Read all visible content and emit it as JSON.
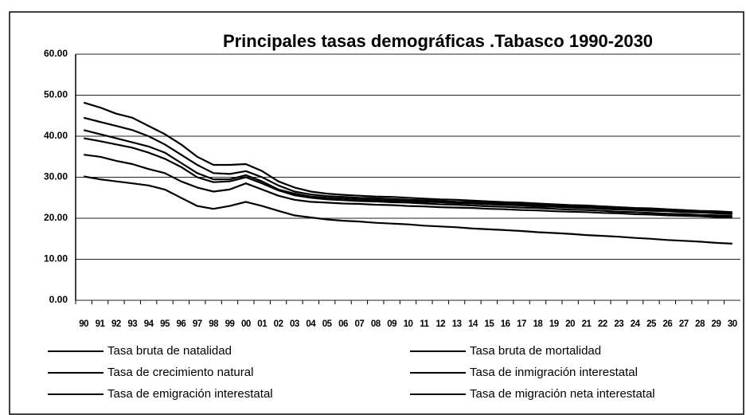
{
  "chart_data": {
    "type": "line",
    "title": "Principales tasas demográficas .Tabasco 1990-2030",
    "categories": [
      "90",
      "91",
      "92",
      "93",
      "94",
      "95",
      "96",
      "97",
      "98",
      "99",
      "00",
      "01",
      "02",
      "03",
      "04",
      "05",
      "06",
      "07",
      "08",
      "09",
      "10",
      "11",
      "12",
      "13",
      "14",
      "15",
      "16",
      "17",
      "18",
      "19",
      "20",
      "21",
      "22",
      "23",
      "24",
      "25",
      "26",
      "27",
      "28",
      "29",
      "30"
    ],
    "series": [
      {
        "name": "Tasa bruta de natalidad",
        "color": "#000000",
        "values": [
          48.2,
          47,
          45.5,
          44.5,
          42.5,
          40.5,
          38,
          35,
          33,
          33,
          33.2,
          31.5,
          29,
          27.5,
          26.5,
          26,
          25.7,
          25.5,
          25.3,
          25.2,
          25.0,
          24.8,
          24.6,
          24.5,
          24.3,
          24.1,
          23.9,
          23.8,
          23.6,
          23.4,
          23.2,
          23.1,
          22.9,
          22.7,
          22.5,
          22.4,
          22.2,
          22.0,
          21.8,
          21.7,
          21.5
        ]
      },
      {
        "name": "Tasa bruta de mortalidad",
        "color": "#000000",
        "values": [
          44.5,
          43.5,
          42.5,
          41.5,
          40,
          38,
          35.5,
          33,
          31,
          30.8,
          31.5,
          30,
          28,
          26.5,
          25.8,
          25.4,
          25.2,
          25.0,
          24.9,
          24.7,
          24.5,
          24.4,
          24.2,
          24.0,
          23.9,
          23.7,
          23.5,
          23.4,
          23.2,
          23.0,
          22.9,
          22.7,
          22.5,
          22.4,
          22.2,
          22.0,
          21.9,
          21.7,
          21.5,
          21.4,
          21.2
        ]
      },
      {
        "name": "Tasa de crecimiento natural",
        "color": "#000000",
        "values": [
          41.5,
          40.5,
          39.5,
          38.5,
          37.5,
          36,
          33.5,
          31,
          29.5,
          29.5,
          30.5,
          29,
          27,
          26,
          25.3,
          25,
          24.8,
          24.6,
          24.5,
          24.3,
          24.2,
          24.0,
          23.9,
          23.7,
          23.6,
          23.4,
          23.3,
          23.1,
          22.9,
          22.8,
          22.6,
          22.5,
          22.3,
          22.1,
          22.0,
          21.8,
          21.7,
          21.5,
          21.4,
          21.2,
          21.0
        ]
      },
      {
        "name": "Tasa de inmigración interestatal",
        "color": "#000000",
        "values": [
          39.5,
          38.8,
          38,
          37.2,
          36,
          34.5,
          32.5,
          30,
          28.8,
          29,
          30,
          28.5,
          26.8,
          25.6,
          25,
          24.6,
          24.4,
          24.2,
          24.1,
          23.9,
          23.8,
          23.6,
          23.4,
          23.3,
          23.1,
          22.9,
          22.8,
          22.6,
          22.5,
          22.3,
          22.1,
          22.0,
          21.8,
          21.6,
          21.5,
          21.3,
          21.1,
          21.0,
          20.8,
          20.7,
          20.5
        ]
      },
      {
        "name": "Tasa de emigración interestatal",
        "color": "#000000",
        "values": [
          35.5,
          35,
          34,
          33.2,
          32,
          31,
          29,
          27.5,
          26.5,
          27,
          28.5,
          27,
          25.5,
          24.5,
          24,
          23.8,
          23.6,
          23.5,
          23.3,
          23.2,
          23.0,
          22.9,
          22.7,
          22.6,
          22.5,
          22.3,
          22.2,
          22.0,
          21.9,
          21.7,
          21.6,
          21.5,
          21.3,
          21.2,
          21.0,
          20.9,
          20.7,
          20.6,
          20.5,
          20.3,
          20.2
        ]
      },
      {
        "name": "Tasa de migración neta interestatal",
        "color": "#000000",
        "values": [
          30.2,
          29.5,
          29,
          28.5,
          28,
          27,
          25,
          23,
          22.3,
          23,
          24,
          23,
          21.8,
          20.7,
          20.2,
          19.7,
          19.4,
          19.2,
          18.9,
          18.7,
          18.5,
          18.2,
          18.0,
          17.8,
          17.5,
          17.3,
          17.1,
          16.9,
          16.6,
          16.4,
          16.2,
          15.9,
          15.7,
          15.5,
          15.2,
          15.0,
          14.7,
          14.5,
          14.3,
          14.0,
          13.8
        ]
      }
    ],
    "ylim": [
      0,
      60
    ],
    "yticks": [
      {
        "value": 0,
        "label": "0.00"
      },
      {
        "value": 10,
        "label": "10.00"
      },
      {
        "value": 20,
        "label": "20.00"
      },
      {
        "value": 30,
        "label": "30.00"
      },
      {
        "value": 40,
        "label": "40.00"
      },
      {
        "value": 50,
        "label": "50.00"
      },
      {
        "value": 60,
        "label": "60.00"
      }
    ],
    "grid": true,
    "legend": "bottom"
  }
}
